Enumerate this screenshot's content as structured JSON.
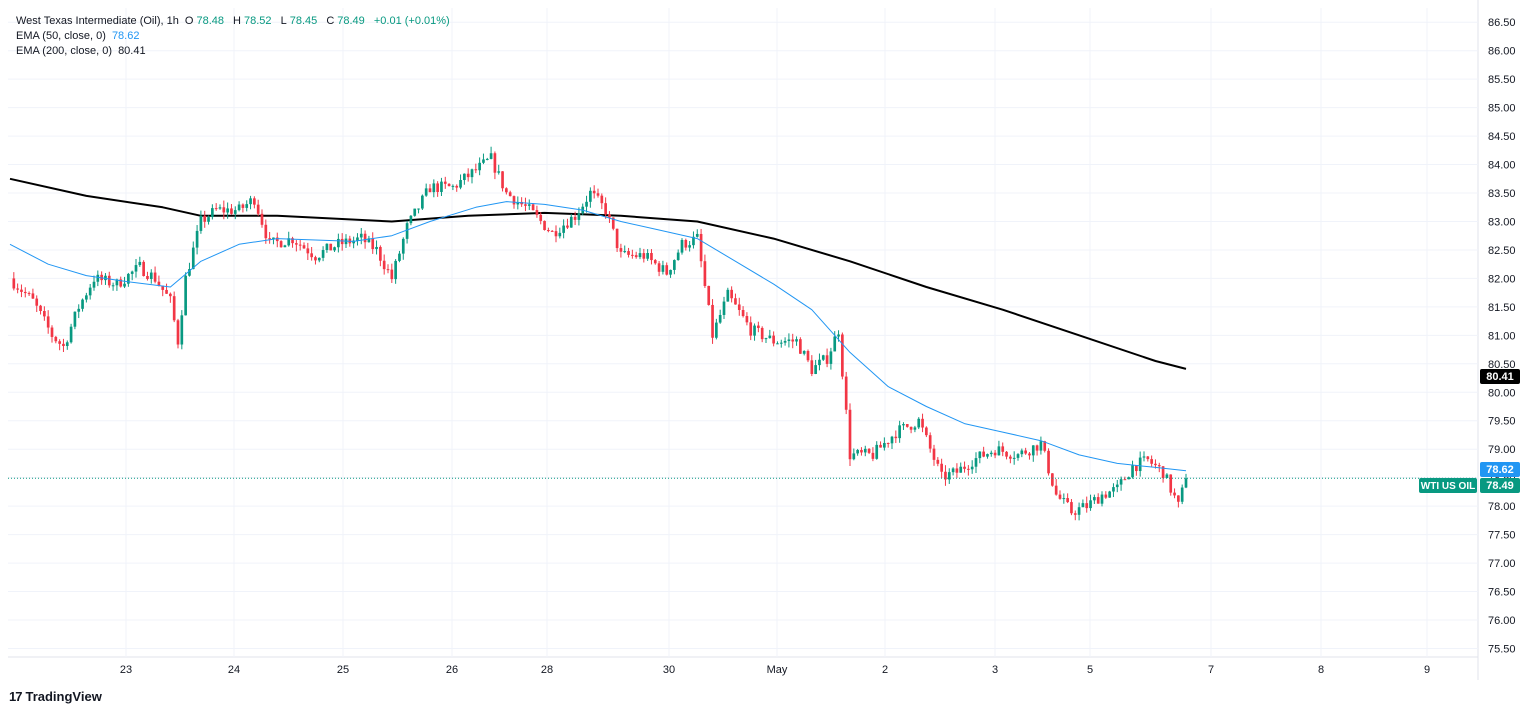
{
  "header": {
    "symbol": "West Texas Intermediate (Oil), 1h",
    "open_label": "O",
    "open": "78.48",
    "high_label": "H",
    "high": "78.52",
    "low_label": "L",
    "low": "78.45",
    "close_label": "C",
    "close": "78.49",
    "change": "+0.01 (+0.01%)",
    "ema50_label": "EMA (50, close, 0)",
    "ema50_value": "78.62",
    "ema200_label": "EMA (200, close, 0)",
    "ema200_value": "80.41"
  },
  "brand": {
    "logo": "17",
    "name": "TradingView"
  },
  "price_tags": {
    "ema200": "80.41",
    "ema50": "78.62",
    "last_name": "WTI US OIL",
    "last": "78.49"
  },
  "colors": {
    "up": "#089981",
    "down": "#f23645",
    "ema50": "#2196f3",
    "ema200": "#000000",
    "grid": "#f0f3fa",
    "last_line": "#089981"
  },
  "chart_data": {
    "type": "candlestick",
    "title": "West Texas Intermediate (Oil), 1h",
    "ylim": [
      75.35,
      86.75
    ],
    "y_ticks": [
      "86.50",
      "86.00",
      "85.50",
      "85.00",
      "84.50",
      "84.00",
      "83.50",
      "83.00",
      "82.50",
      "82.00",
      "81.50",
      "81.00",
      "80.50",
      "80.00",
      "79.50",
      "79.00",
      "78.50",
      "78.00",
      "77.50",
      "77.00",
      "76.50",
      "76.00",
      "75.50"
    ],
    "x_ticks": [
      "23",
      "24",
      "25",
      "26",
      "28",
      "30",
      "May",
      "2",
      "3",
      "5",
      "7",
      "8",
      "9"
    ],
    "grid": true,
    "close_path": [
      {
        "t": 0,
        "p": 82.0
      },
      {
        "t": 6,
        "p": 81.6
      },
      {
        "t": 11,
        "p": 81.0
      },
      {
        "t": 14,
        "p": 80.8
      },
      {
        "t": 18,
        "p": 81.5
      },
      {
        "t": 22,
        "p": 82.0
      },
      {
        "t": 28,
        "p": 81.9
      },
      {
        "t": 34,
        "p": 82.2
      },
      {
        "t": 38,
        "p": 82.0
      },
      {
        "t": 42,
        "p": 81.6
      },
      {
        "t": 44,
        "p": 80.9
      },
      {
        "t": 46,
        "p": 82.0
      },
      {
        "t": 50,
        "p": 83.0
      },
      {
        "t": 54,
        "p": 83.2
      },
      {
        "t": 60,
        "p": 83.2
      },
      {
        "t": 64,
        "p": 83.4
      },
      {
        "t": 68,
        "p": 82.6
      },
      {
        "t": 74,
        "p": 82.7
      },
      {
        "t": 80,
        "p": 82.4
      },
      {
        "t": 86,
        "p": 82.6
      },
      {
        "t": 92,
        "p": 82.7
      },
      {
        "t": 96,
        "p": 82.5
      },
      {
        "t": 100,
        "p": 82.0
      },
      {
        "t": 104,
        "p": 82.9
      },
      {
        "t": 110,
        "p": 83.6
      },
      {
        "t": 116,
        "p": 83.6
      },
      {
        "t": 122,
        "p": 83.9
      },
      {
        "t": 126,
        "p": 84.1
      },
      {
        "t": 130,
        "p": 83.5
      },
      {
        "t": 136,
        "p": 83.2
      },
      {
        "t": 142,
        "p": 82.8
      },
      {
        "t": 148,
        "p": 83.1
      },
      {
        "t": 152,
        "p": 83.5
      },
      {
        "t": 156,
        "p": 83.2
      },
      {
        "t": 160,
        "p": 82.4
      },
      {
        "t": 166,
        "p": 82.4
      },
      {
        "t": 172,
        "p": 82.1
      },
      {
        "t": 176,
        "p": 82.6
      },
      {
        "t": 180,
        "p": 82.7
      },
      {
        "t": 184,
        "p": 81.0
      },
      {
        "t": 188,
        "p": 81.7
      },
      {
        "t": 194,
        "p": 81.1
      },
      {
        "t": 200,
        "p": 80.9
      },
      {
        "t": 206,
        "p": 80.9
      },
      {
        "t": 210,
        "p": 80.4
      },
      {
        "t": 214,
        "p": 80.6
      },
      {
        "t": 217,
        "p": 81.1
      },
      {
        "t": 220,
        "p": 78.9
      },
      {
        "t": 226,
        "p": 78.9
      },
      {
        "t": 232,
        "p": 79.3
      },
      {
        "t": 238,
        "p": 79.5
      },
      {
        "t": 244,
        "p": 78.5
      },
      {
        "t": 248,
        "p": 78.6
      },
      {
        "t": 252,
        "p": 78.8
      },
      {
        "t": 258,
        "p": 79.0
      },
      {
        "t": 264,
        "p": 78.9
      },
      {
        "t": 270,
        "p": 79.1
      },
      {
        "t": 274,
        "p": 78.2
      },
      {
        "t": 278,
        "p": 77.9
      },
      {
        "t": 282,
        "p": 78.0
      },
      {
        "t": 286,
        "p": 78.2
      },
      {
        "t": 290,
        "p": 78.3
      },
      {
        "t": 294,
        "p": 78.7
      },
      {
        "t": 298,
        "p": 78.8
      },
      {
        "t": 302,
        "p": 78.6
      },
      {
        "t": 306,
        "p": 78.0
      },
      {
        "t": 308,
        "p": 78.49
      }
    ],
    "ema50": [
      {
        "t": 0,
        "p": 82.6
      },
      {
        "t": 10,
        "p": 82.25
      },
      {
        "t": 20,
        "p": 82.05
      },
      {
        "t": 30,
        "p": 81.95
      },
      {
        "t": 42,
        "p": 81.85
      },
      {
        "t": 50,
        "p": 82.3
      },
      {
        "t": 60,
        "p": 82.6
      },
      {
        "t": 70,
        "p": 82.7
      },
      {
        "t": 90,
        "p": 82.65
      },
      {
        "t": 100,
        "p": 82.75
      },
      {
        "t": 110,
        "p": 83.0
      },
      {
        "t": 122,
        "p": 83.25
      },
      {
        "t": 130,
        "p": 83.35
      },
      {
        "t": 140,
        "p": 83.3
      },
      {
        "t": 150,
        "p": 83.2
      },
      {
        "t": 160,
        "p": 83.0
      },
      {
        "t": 170,
        "p": 82.85
      },
      {
        "t": 180,
        "p": 82.7
      },
      {
        "t": 190,
        "p": 82.3
      },
      {
        "t": 200,
        "p": 81.9
      },
      {
        "t": 210,
        "p": 81.45
      },
      {
        "t": 220,
        "p": 80.7
      },
      {
        "t": 230,
        "p": 80.1
      },
      {
        "t": 240,
        "p": 79.75
      },
      {
        "t": 250,
        "p": 79.45
      },
      {
        "t": 260,
        "p": 79.3
      },
      {
        "t": 270,
        "p": 79.15
      },
      {
        "t": 280,
        "p": 78.9
      },
      {
        "t": 290,
        "p": 78.75
      },
      {
        "t": 300,
        "p": 78.68
      },
      {
        "t": 308,
        "p": 78.62
      }
    ],
    "ema200": [
      {
        "t": 0,
        "p": 83.75
      },
      {
        "t": 20,
        "p": 83.45
      },
      {
        "t": 40,
        "p": 83.25
      },
      {
        "t": 50,
        "p": 83.1
      },
      {
        "t": 70,
        "p": 83.1
      },
      {
        "t": 100,
        "p": 83.0
      },
      {
        "t": 120,
        "p": 83.1
      },
      {
        "t": 140,
        "p": 83.15
      },
      {
        "t": 160,
        "p": 83.1
      },
      {
        "t": 180,
        "p": 83.0
      },
      {
        "t": 200,
        "p": 82.7
      },
      {
        "t": 220,
        "p": 82.3
      },
      {
        "t": 240,
        "p": 81.85
      },
      {
        "t": 260,
        "p": 81.45
      },
      {
        "t": 280,
        "p": 81.0
      },
      {
        "t": 300,
        "p": 80.55
      },
      {
        "t": 308,
        "p": 80.41
      }
    ],
    "last_price": 78.49
  }
}
